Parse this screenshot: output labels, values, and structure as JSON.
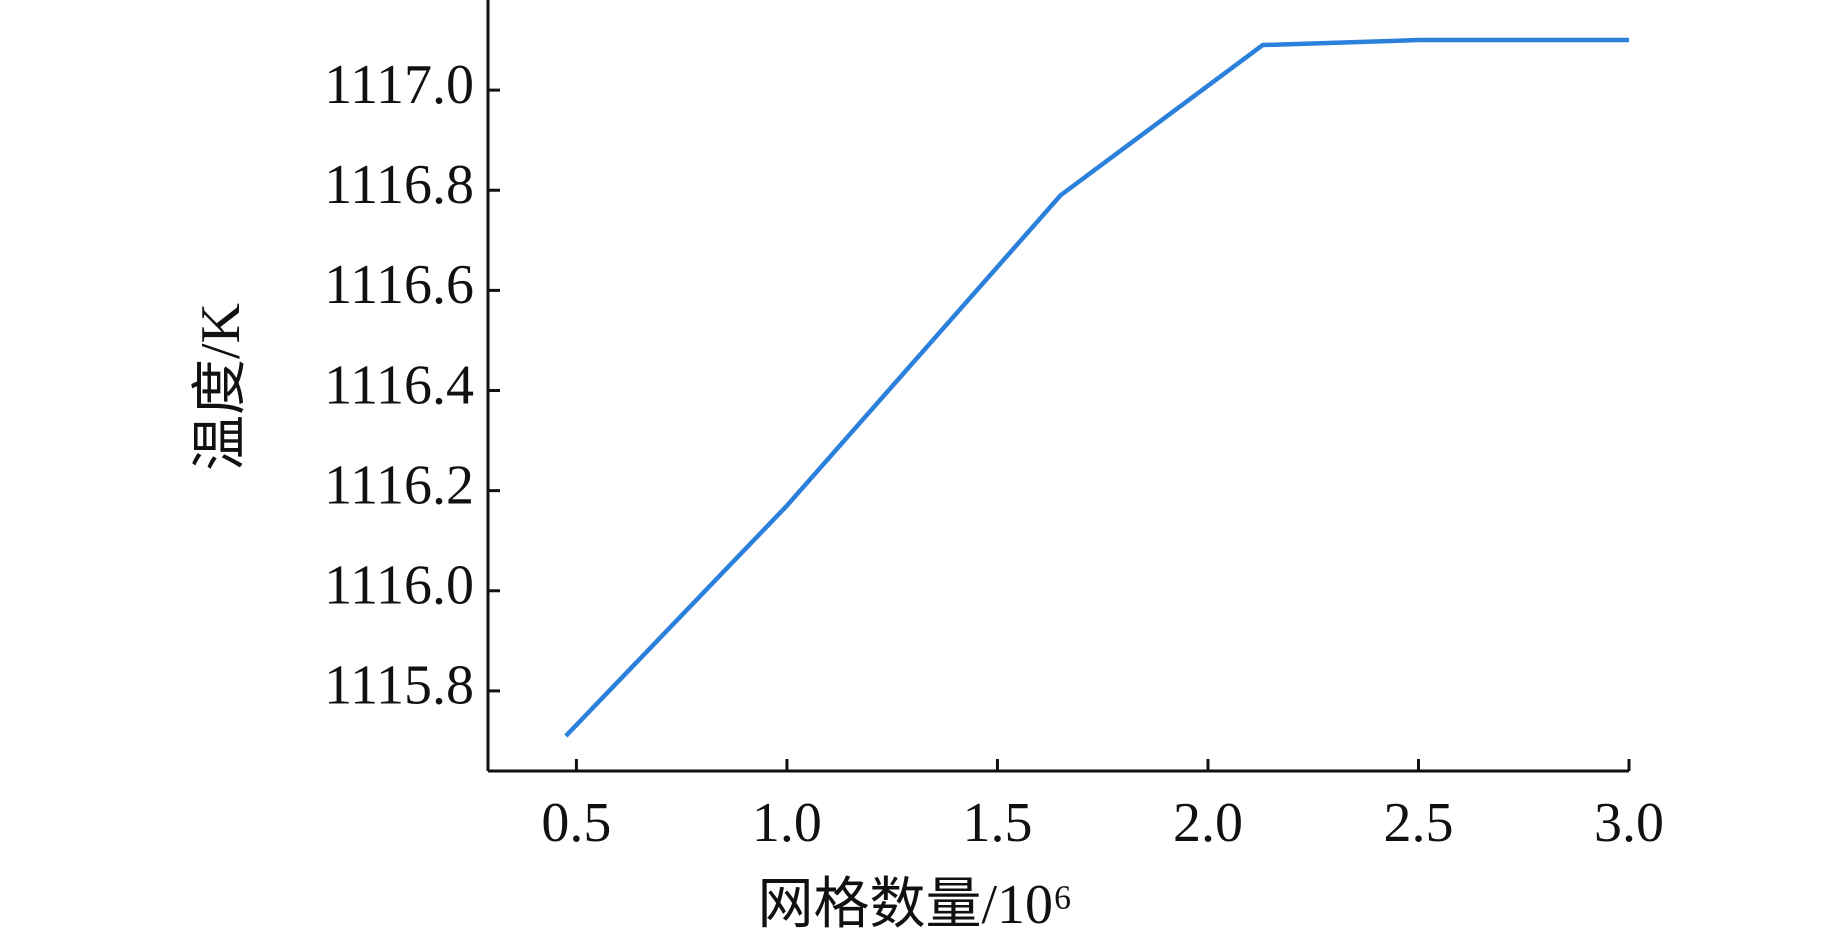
{
  "chart_data": {
    "type": "line",
    "x_label": "网格数量/10⁶",
    "y_label": "温度/K",
    "x": [
      0.475,
      1.0,
      1.65,
      2.13,
      2.5,
      3.0
    ],
    "series": [
      {
        "color": "#2b80dc",
        "values": [
          1115.71,
          1116.17,
          1116.79,
          1117.09,
          1117.1,
          1117.1
        ]
      }
    ],
    "xlim": [
      0.29,
      3.0
    ],
    "ylim": [
      1115.64,
      1117.18
    ],
    "xticks": [
      0.5,
      {
        "value": 1,
        "label": "1.0"
      },
      1.5,
      {
        "value": 2,
        "label": "2.0"
      },
      2.5,
      {
        "value": 3,
        "label": "3.0"
      }
    ],
    "yticks": [
      1115.8,
      {
        "value": 1116,
        "label": "1116.0"
      },
      1116.2,
      1116.4,
      1116.6,
      1116.8,
      {
        "value": 1117,
        "label": "1117.0"
      }
    ]
  }
}
